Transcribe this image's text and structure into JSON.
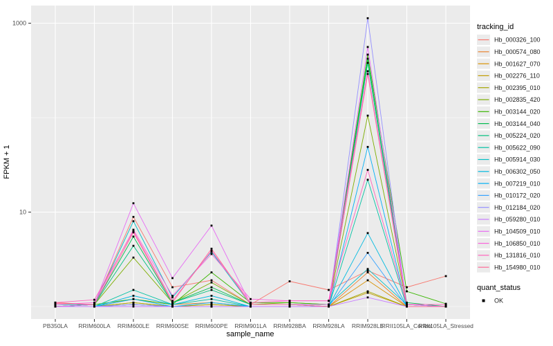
{
  "chart_data": {
    "type": "line",
    "title": "",
    "xlabel": "sample_name",
    "ylabel": "FPKM + 1",
    "y_scale": "log10",
    "y_major_ticks": [
      {
        "label": "1000",
        "value": 1000
      },
      {
        "label": "10",
        "value": 10
      }
    ],
    "y_minor_gridlines": [
      1,
      100
    ],
    "ylim_log": [
      0.85,
      1500
    ],
    "grid": true,
    "panel_background": "#EBEBEB",
    "gridline_color": "#FFFFFF",
    "axis_text_color": "#4D4D4D",
    "point_color": "#000000",
    "point_shape": "square",
    "legend_position": "right",
    "legend_title": "tracking_id",
    "legend2_title": "quant_status",
    "legend2_items": [
      {
        "label": "OK",
        "symbol": "black-square"
      }
    ],
    "categories": [
      "PB350LA",
      "RRIM600LA",
      "RRIM600LE",
      "RRIM600SE",
      "RRIM600PE",
      "RRIM901LA",
      "RRIM928BA",
      "RRIM928LA",
      "RRIM928LE",
      "RRII105LA_Control",
      "RRII105LA_Stressed"
    ],
    "series": [
      {
        "name": "Hb_000326_100",
        "color": "#F8766D",
        "values": [
          1.1,
          1.05,
          8.9,
          1.6,
          1.9,
          1.05,
          1.85,
          1.5,
          2.4,
          1.6,
          2.1
        ]
      },
      {
        "name": "Hb_000574_080",
        "color": "#EA8331",
        "values": [
          1.0,
          1.0,
          1.2,
          1.05,
          1.1,
          1.0,
          1.0,
          1.0,
          2.3,
          1.0,
          1.0
        ]
      },
      {
        "name": "Hb_001627_070",
        "color": "#D89000",
        "values": [
          1.0,
          1.0,
          1.1,
          1.0,
          1.05,
          1.0,
          1.0,
          1.0,
          1.9,
          1.0,
          1.0
        ]
      },
      {
        "name": "Hb_002276_110",
        "color": "#C09B00",
        "values": [
          1.0,
          1.0,
          1.05,
          1.0,
          1.0,
          1.0,
          1.0,
          1.0,
          1.4,
          1.0,
          1.0
        ]
      },
      {
        "name": "Hb_002395_010",
        "color": "#A3A500",
        "values": [
          1.0,
          1.0,
          1.1,
          1.0,
          1.05,
          1.0,
          1.0,
          1.0,
          1.45,
          1.0,
          1.0
        ]
      },
      {
        "name": "Hb_002835_420",
        "color": "#7CAE00",
        "values": [
          1.0,
          1.05,
          3.3,
          1.1,
          1.8,
          1.05,
          1.1,
          1.05,
          105,
          1.05,
          1.0
        ]
      },
      {
        "name": "Hb_003144_020",
        "color": "#39B600",
        "values": [
          1.0,
          1.05,
          1.2,
          1.05,
          2.3,
          1.1,
          1.1,
          1.05,
          465,
          1.45,
          1.07
        ]
      },
      {
        "name": "Hb_003144_040",
        "color": "#00BB4E",
        "values": [
          1.0,
          1.05,
          5.5,
          1.1,
          1.6,
          1.05,
          1.05,
          1.0,
          420,
          1.1,
          1.0
        ]
      },
      {
        "name": "Hb_005224_020",
        "color": "#00BF7D",
        "values": [
          1.0,
          1.05,
          4.4,
          1.1,
          1.5,
          1.05,
          1.05,
          1.0,
          380,
          1.05,
          1.0
        ]
      },
      {
        "name": "Hb_005622_090",
        "color": "#00C1A3",
        "values": [
          1.0,
          1.0,
          1.5,
          1.05,
          1.2,
          1.0,
          1.0,
          1.0,
          22,
          1.0,
          1.0
        ]
      },
      {
        "name": "Hb_005914_030",
        "color": "#00BFC4",
        "values": [
          1.05,
          1.05,
          8.0,
          1.25,
          3.8,
          1.05,
          1.05,
          1.05,
          2.5,
          1.05,
          1.0
        ]
      },
      {
        "name": "Hb_006302_050",
        "color": "#00BAE0",
        "values": [
          1.0,
          1.0,
          1.3,
          1.05,
          1.3,
          1.0,
          1.0,
          1.0,
          6.0,
          1.0,
          1.0
        ]
      },
      {
        "name": "Hb_007219_010",
        "color": "#00B0F6",
        "values": [
          1.0,
          1.0,
          1.2,
          1.0,
          1.1,
          1.0,
          1.0,
          1.0,
          49,
          1.0,
          1.0
        ]
      },
      {
        "name": "Hb_010172_020",
        "color": "#35A2FF",
        "values": [
          1.0,
          1.0,
          1.05,
          1.0,
          1.0,
          1.0,
          1.0,
          1.0,
          3.7,
          1.0,
          1.0
        ]
      },
      {
        "name": "Hb_012184_020",
        "color": "#9590FF",
        "values": [
          1.0,
          1.0,
          1.05,
          1.0,
          1.0,
          1.0,
          1.0,
          1.0,
          1130,
          1.0,
          1.0
        ]
      },
      {
        "name": "Hb_059280_010",
        "color": "#C77CFF",
        "values": [
          1.0,
          1.0,
          1.0,
          1.0,
          1.0,
          1.0,
          1.0,
          1.0,
          1.25,
          1.0,
          1.0
        ]
      },
      {
        "name": "Hb_104509_010",
        "color": "#E76BF3",
        "values": [
          1.0,
          1.05,
          12.4,
          2.0,
          7.2,
          1.05,
          1.05,
          1.05,
          560,
          1.05,
          1.0
        ]
      },
      {
        "name": "Hb_106850_010",
        "color": "#FA62DB",
        "values": [
          1.05,
          1.1,
          6.5,
          1.3,
          3.6,
          1.2,
          1.15,
          1.15,
          310,
          1.05,
          1.05
        ]
      },
      {
        "name": "Hb_131816_010",
        "color": "#FF62BC",
        "values": [
          1.1,
          1.18,
          6.3,
          1.15,
          3.9,
          1.1,
          1.15,
          1.15,
          28,
          1.05,
          1.05
        ]
      },
      {
        "name": "Hb_154980_010",
        "color": "#FF6A98",
        "values": [
          1.08,
          1.05,
          6.1,
          1.1,
          4.1,
          1.05,
          1.05,
          1.0,
          290,
          1.0,
          1.0
        ]
      }
    ]
  }
}
